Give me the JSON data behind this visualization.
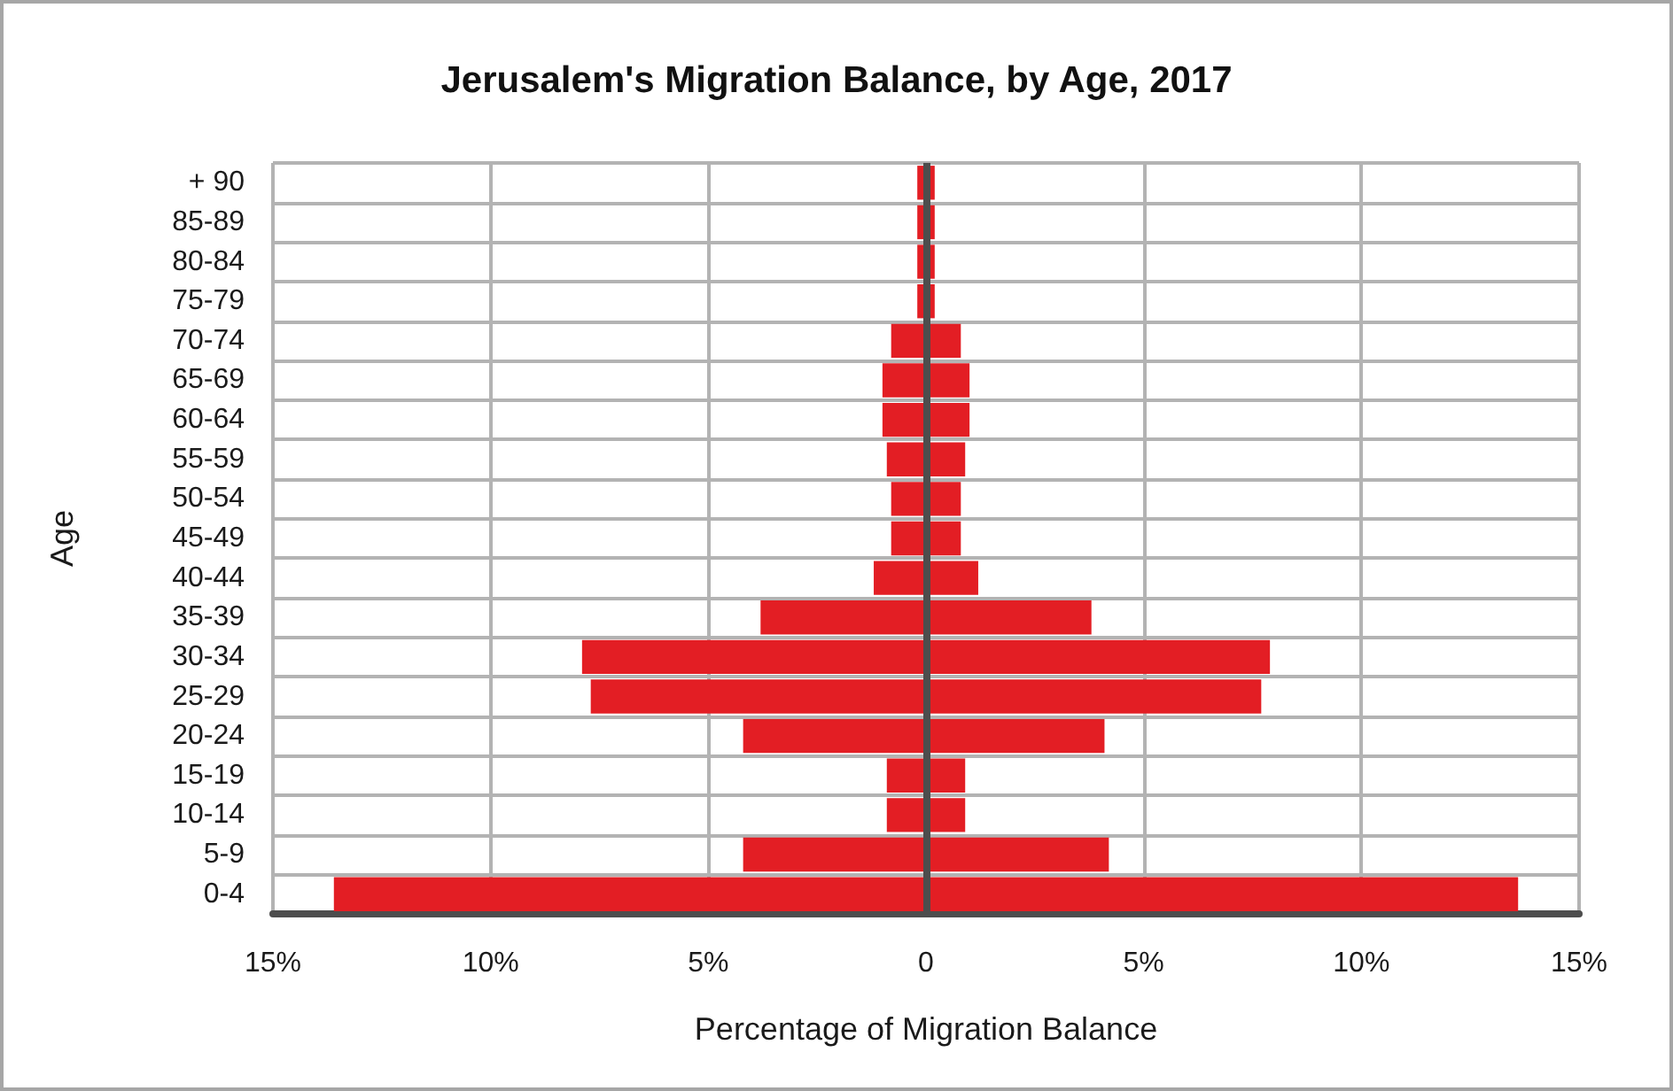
{
  "chart_data": {
    "type": "bar",
    "title": "Jerusalem's Migration Balance, by Age, 2017",
    "xlabel": "Percentage of Migration Balance",
    "ylabel": "Age",
    "orientation": "horizontal",
    "stacked": true,
    "categories": [
      "+ 90",
      "85-89",
      "80-84",
      "75-79",
      "70-74",
      "65-69",
      "60-64",
      "55-59",
      "50-54",
      "45-49",
      "40-44",
      "35-39",
      "30-34",
      "25-29",
      "20-24",
      "15-19",
      "10-14",
      "5-9",
      "0-4"
    ],
    "series": [
      {
        "color": "#e31e24",
        "values": [
          -0.2,
          -0.2,
          -0.2,
          -0.2,
          -0.8,
          -1.0,
          -1.0,
          -0.9,
          -0.8,
          -0.8,
          -1.2,
          -3.8,
          -7.9,
          -7.7,
          -4.2,
          -0.9,
          -0.9,
          -4.2,
          -13.6
        ]
      },
      {
        "color": "#e31e24",
        "values": [
          0.2,
          0.2,
          0.2,
          0.2,
          0.8,
          1.0,
          1.0,
          0.9,
          0.8,
          0.8,
          1.2,
          3.8,
          7.9,
          7.7,
          4.1,
          0.9,
          0.9,
          4.2,
          13.6
        ]
      }
    ],
    "xlim": [
      -15,
      15
    ],
    "xticks": [
      {
        "value": -15,
        "label": "15%"
      },
      {
        "value": -10,
        "label": "10%"
      },
      {
        "value": -5,
        "label": "5%"
      },
      0,
      {
        "value": 5,
        "label": "5%"
      },
      {
        "value": 10,
        "label": "10%"
      },
      {
        "value": 15,
        "label": "15%"
      }
    ],
    "grid": true,
    "ref_lines": [
      {
        "axis": "x",
        "value": 0,
        "color": "#4d4d4d"
      }
    ]
  }
}
